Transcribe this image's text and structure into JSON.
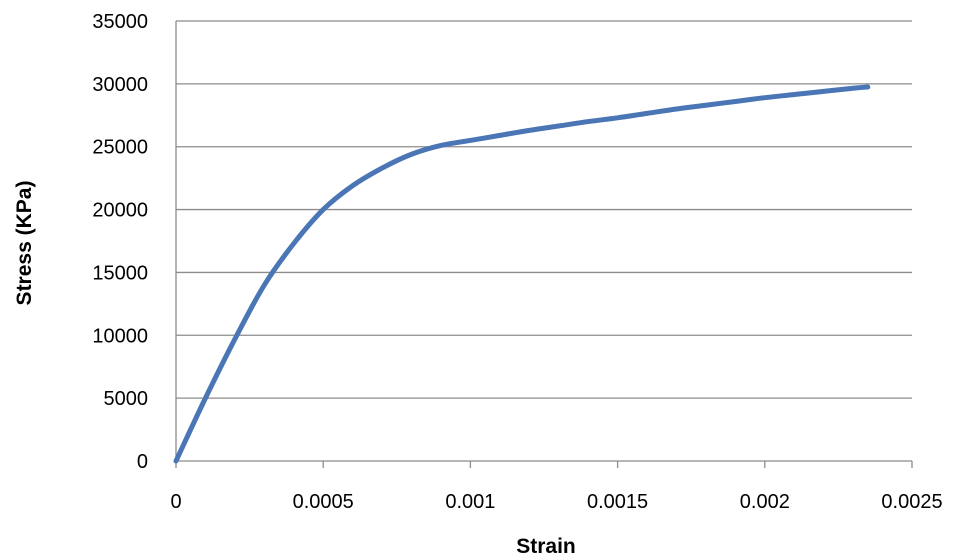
{
  "chart_data": {
    "type": "line",
    "xlabel": "Strain",
    "ylabel": "Stress (KPa)",
    "xlim": [
      0,
      0.0025
    ],
    "ylim": [
      0,
      35000
    ],
    "x_ticks": [
      0,
      0.0005,
      0.001,
      0.0015,
      0.002,
      0.0025
    ],
    "x_tick_labels": [
      "0",
      "0.0005",
      "0.001",
      "0.0015",
      "0.002",
      "0.0025"
    ],
    "y_ticks": [
      0,
      5000,
      10000,
      15000,
      20000,
      25000,
      30000,
      35000
    ],
    "y_tick_labels": [
      "0",
      "5000",
      "10000",
      "15000",
      "20000",
      "25000",
      "30000",
      "35000"
    ],
    "grid": "horizontal",
    "legend": "none",
    "series": [
      {
        "color": "#4a76b6",
        "x": [
          0,
          0.0001,
          0.0002,
          0.0003,
          0.0004,
          0.0005,
          0.0006,
          0.0007,
          0.0008,
          0.0009,
          0.001,
          0.0011,
          0.0012,
          0.0013,
          0.0014,
          0.0015,
          0.0016,
          0.0017,
          0.0018,
          0.0019,
          0.002,
          0.0021,
          0.0022,
          0.0023,
          0.00235
        ],
        "y": [
          0,
          5000,
          9700,
          14000,
          17300,
          20000,
          21900,
          23300,
          24400,
          25100,
          25500,
          25900,
          26300,
          26650,
          27000,
          27300,
          27650,
          28000,
          28300,
          28600,
          28900,
          29150,
          29400,
          29650,
          29750
        ]
      }
    ]
  }
}
